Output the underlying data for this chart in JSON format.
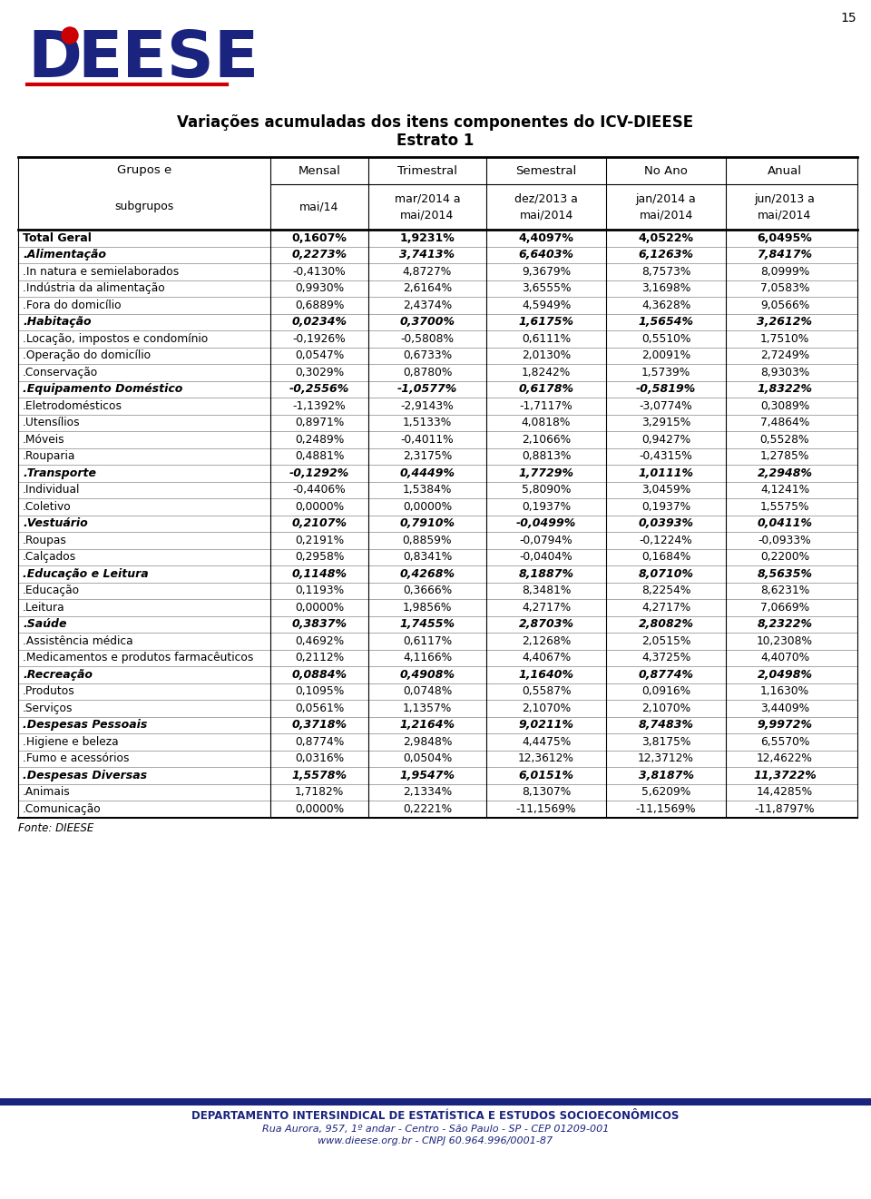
{
  "title_line1": "Variações acumuladas dos itens componentes do ICV-DIEESE",
  "title_line2": "Estrato 1",
  "page_number": "15",
  "col_header_row1": [
    "Grupos e",
    "Mensal",
    "Trimestral",
    "Semestral",
    "No Ano",
    "Anual"
  ],
  "col_header_row2": [
    "subgrupos",
    "mai/14",
    "mar/2014 a\nmai/2014",
    "dez/2013 a\nmai/2014",
    "jan/2014 a\nmai/2014",
    "jun/2013 a\nmai/2014"
  ],
  "rows": [
    {
      "label": "Total Geral",
      "bold": true,
      "italic": false,
      "values": [
        "0,1607%",
        "1,9231%",
        "4,4097%",
        "4,0522%",
        "6,0495%"
      ]
    },
    {
      "label": ".Alimentação",
      "bold": true,
      "italic": true,
      "values": [
        "0,2273%",
        "3,7413%",
        "6,6403%",
        "6,1263%",
        "7,8417%"
      ]
    },
    {
      "label": ".In natura e semielaborados",
      "bold": false,
      "italic": false,
      "values": [
        "-0,4130%",
        "4,8727%",
        "9,3679%",
        "8,7573%",
        "8,0999%"
      ]
    },
    {
      "label": ".Indústria da alimentação",
      "bold": false,
      "italic": false,
      "values": [
        "0,9930%",
        "2,6164%",
        "3,6555%",
        "3,1698%",
        "7,0583%"
      ]
    },
    {
      "label": ".Fora do domicílio",
      "bold": false,
      "italic": false,
      "values": [
        "0,6889%",
        "2,4374%",
        "4,5949%",
        "4,3628%",
        "9,0566%"
      ]
    },
    {
      "label": ".Habitação",
      "bold": true,
      "italic": true,
      "values": [
        "0,0234%",
        "0,3700%",
        "1,6175%",
        "1,5654%",
        "3,2612%"
      ]
    },
    {
      "label": ".Locação, impostos e condomínio",
      "bold": false,
      "italic": false,
      "values": [
        "-0,1926%",
        "-0,5808%",
        "0,6111%",
        "0,5510%",
        "1,7510%"
      ]
    },
    {
      "label": ".Operação do domicílio",
      "bold": false,
      "italic": false,
      "values": [
        "0,0547%",
        "0,6733%",
        "2,0130%",
        "2,0091%",
        "2,7249%"
      ]
    },
    {
      "label": ".Conservação",
      "bold": false,
      "italic": false,
      "values": [
        "0,3029%",
        "0,8780%",
        "1,8242%",
        "1,5739%",
        "8,9303%"
      ]
    },
    {
      "label": ".Equipamento Doméstico",
      "bold": true,
      "italic": true,
      "values": [
        "-0,2556%",
        "-1,0577%",
        "0,6178%",
        "-0,5819%",
        "1,8322%"
      ]
    },
    {
      "label": ".Eletrodomésticos",
      "bold": false,
      "italic": false,
      "values": [
        "-1,1392%",
        "-2,9143%",
        "-1,7117%",
        "-3,0774%",
        "0,3089%"
      ]
    },
    {
      "label": ".Utensílios",
      "bold": false,
      "italic": false,
      "values": [
        "0,8971%",
        "1,5133%",
        "4,0818%",
        "3,2915%",
        "7,4864%"
      ]
    },
    {
      "label": ".Móveis",
      "bold": false,
      "italic": false,
      "values": [
        "0,2489%",
        "-0,4011%",
        "2,1066%",
        "0,9427%",
        "0,5528%"
      ]
    },
    {
      "label": ".Rouparia",
      "bold": false,
      "italic": false,
      "values": [
        "0,4881%",
        "2,3175%",
        "0,8813%",
        "-0,4315%",
        "1,2785%"
      ]
    },
    {
      "label": ".Transporte",
      "bold": true,
      "italic": true,
      "values": [
        "-0,1292%",
        "0,4449%",
        "1,7729%",
        "1,0111%",
        "2,2948%"
      ]
    },
    {
      "label": ".Individual",
      "bold": false,
      "italic": false,
      "values": [
        "-0,4406%",
        "1,5384%",
        "5,8090%",
        "3,0459%",
        "4,1241%"
      ]
    },
    {
      "label": ".Coletivo",
      "bold": false,
      "italic": false,
      "values": [
        "0,0000%",
        "0,0000%",
        "0,1937%",
        "0,1937%",
        "1,5575%"
      ]
    },
    {
      "label": ".Vestuário",
      "bold": true,
      "italic": true,
      "values": [
        "0,2107%",
        "0,7910%",
        "-0,0499%",
        "0,0393%",
        "0,0411%"
      ]
    },
    {
      "label": ".Roupas",
      "bold": false,
      "italic": false,
      "values": [
        "0,2191%",
        "0,8859%",
        "-0,0794%",
        "-0,1224%",
        "-0,0933%"
      ]
    },
    {
      "label": ".Calçados",
      "bold": false,
      "italic": false,
      "values": [
        "0,2958%",
        "0,8341%",
        "-0,0404%",
        "0,1684%",
        "0,2200%"
      ]
    },
    {
      "label": ".Educação e Leitura",
      "bold": true,
      "italic": true,
      "values": [
        "0,1148%",
        "0,4268%",
        "8,1887%",
        "8,0710%",
        "8,5635%"
      ]
    },
    {
      "label": ".Educação",
      "bold": false,
      "italic": false,
      "values": [
        "0,1193%",
        "0,3666%",
        "8,3481%",
        "8,2254%",
        "8,6231%"
      ]
    },
    {
      "label": ".Leitura",
      "bold": false,
      "italic": false,
      "values": [
        "0,0000%",
        "1,9856%",
        "4,2717%",
        "4,2717%",
        "7,0669%"
      ]
    },
    {
      "label": ".Saúde",
      "bold": true,
      "italic": true,
      "values": [
        "0,3837%",
        "1,7455%",
        "2,8703%",
        "2,8082%",
        "8,2322%"
      ]
    },
    {
      "label": ".Assistência médica",
      "bold": false,
      "italic": false,
      "values": [
        "0,4692%",
        "0,6117%",
        "2,1268%",
        "2,0515%",
        "10,2308%"
      ]
    },
    {
      "label": ".Medicamentos e produtos farmacêuticos",
      "bold": false,
      "italic": false,
      "values": [
        "0,2112%",
        "4,1166%",
        "4,4067%",
        "4,3725%",
        "4,4070%"
      ]
    },
    {
      "label": ".Recreação",
      "bold": true,
      "italic": true,
      "values": [
        "0,0884%",
        "0,4908%",
        "1,1640%",
        "0,8774%",
        "2,0498%"
      ]
    },
    {
      "label": ".Produtos",
      "bold": false,
      "italic": false,
      "values": [
        "0,1095%",
        "0,0748%",
        "0,5587%",
        "0,0916%",
        "1,1630%"
      ]
    },
    {
      "label": ".Serviços",
      "bold": false,
      "italic": false,
      "values": [
        "0,0561%",
        "1,1357%",
        "2,1070%",
        "2,1070%",
        "3,4409%"
      ]
    },
    {
      "label": ".Despesas Pessoais",
      "bold": true,
      "italic": true,
      "values": [
        "0,3718%",
        "1,2164%",
        "9,0211%",
        "8,7483%",
        "9,9972%"
      ]
    },
    {
      "label": ".Higiene e beleza",
      "bold": false,
      "italic": false,
      "values": [
        "0,8774%",
        "2,9848%",
        "4,4475%",
        "3,8175%",
        "6,5570%"
      ]
    },
    {
      "label": ".Fumo e acessórios",
      "bold": false,
      "italic": false,
      "values": [
        "0,0316%",
        "0,0504%",
        "12,3612%",
        "12,3712%",
        "12,4622%"
      ]
    },
    {
      "label": ".Despesas Diversas",
      "bold": true,
      "italic": true,
      "values": [
        "1,5578%",
        "1,9547%",
        "6,0151%",
        "3,8187%",
        "11,3722%"
      ]
    },
    {
      "label": ".Animais",
      "bold": false,
      "italic": false,
      "values": [
        "1,7182%",
        "2,1334%",
        "8,1307%",
        "5,6209%",
        "14,4285%"
      ]
    },
    {
      "label": ".Comunicação",
      "bold": false,
      "italic": false,
      "values": [
        "0,0000%",
        "0,2221%",
        "-11,1569%",
        "-11,1569%",
        "-11,8797%"
      ]
    }
  ],
  "footer_source": "Fonte: DIEESE",
  "footer_dept": "DEPARTAMENTO INTERSINDICAL DE ESTATÍSTICA E ESTUDOS SOCIOECONÔMICOS",
  "footer_addr": "Rua Aurora, 957, 1º andar - Centro - São Paulo - SP - CEP 01209-001",
  "footer_web": "www.dieese.org.br - CNPJ 60.964.996/0001-87",
  "background_color": "#ffffff",
  "navy_color": "#1a237e",
  "logo_red": "#cc0000",
  "logo_navy": "#1a237e"
}
